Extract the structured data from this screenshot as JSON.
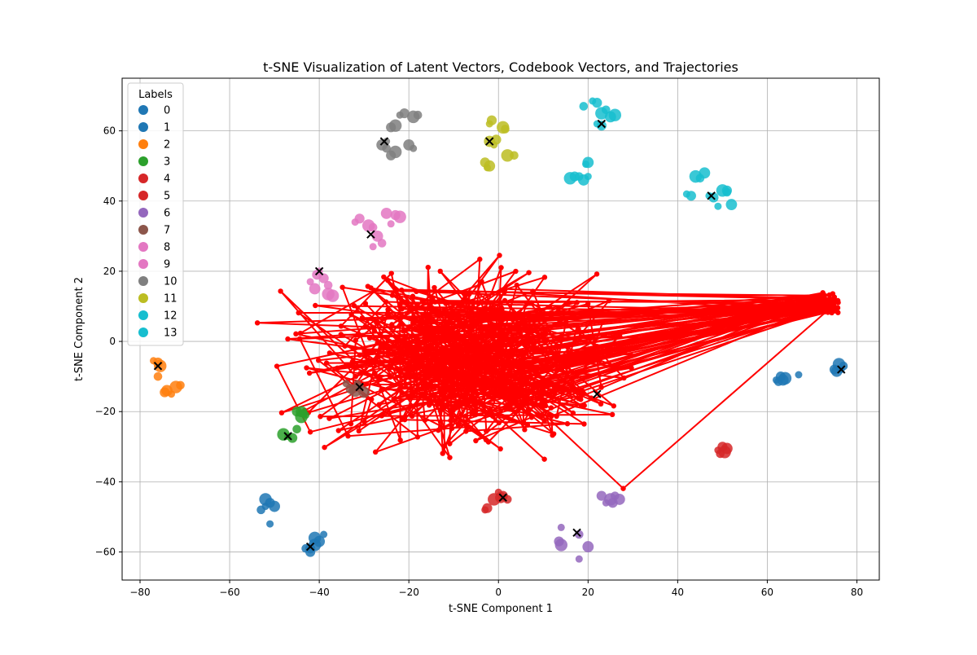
{
  "chart_data": {
    "type": "scatter",
    "title": "t-SNE Visualization of Latent Vectors, Codebook Vectors, and Trajectories",
    "xlabel": "t-SNE Component 1",
    "ylabel": "t-SNE Component 2",
    "xlim": [
      -84,
      85
    ],
    "ylim": [
      -68,
      75
    ],
    "xticks": [
      -80,
      -60,
      -40,
      -20,
      0,
      20,
      40,
      60,
      80
    ],
    "yticks": [
      -60,
      -40,
      -20,
      0,
      20,
      40,
      60
    ],
    "xtick_labels": [
      "−80",
      "−60",
      "−40",
      "−20",
      "0",
      "20",
      "40",
      "60",
      "80"
    ],
    "ytick_labels": [
      "−60",
      "−40",
      "−20",
      "0",
      "20",
      "40",
      "60"
    ],
    "grid": true,
    "legend": {
      "title": "Labels",
      "placement": "upper-left",
      "entries": [
        {
          "label": "0",
          "color": "#1f77b4"
        },
        {
          "label": "1",
          "color": "#1f77b4"
        },
        {
          "label": "2",
          "color": "#ff7f0e"
        },
        {
          "label": "3",
          "color": "#2ca02c"
        },
        {
          "label": "4",
          "color": "#d62728"
        },
        {
          "label": "5",
          "color": "#d62728"
        },
        {
          "label": "6",
          "color": "#9467bd"
        },
        {
          "label": "7",
          "color": "#8c564b"
        },
        {
          "label": "8",
          "color": "#e377c2"
        },
        {
          "label": "9",
          "color": "#e377c2"
        },
        {
          "label": "10",
          "color": "#7f7f7f"
        },
        {
          "label": "11",
          "color": "#bcbd22"
        },
        {
          "label": "12",
          "color": "#17becf"
        },
        {
          "label": "13",
          "color": "#17becf"
        }
      ]
    },
    "clusters": [
      {
        "label": "0",
        "color": "#1f77b4",
        "points": [
          [
            -52,
            -47
          ],
          [
            -51,
            -46
          ],
          [
            -52,
            -45
          ],
          [
            -53,
            -48
          ],
          [
            -50,
            -47
          ],
          [
            -51,
            -52
          ],
          [
            -42,
            -59
          ],
          [
            -41,
            -58
          ],
          [
            -43,
            -59
          ],
          [
            -40,
            -57
          ],
          [
            -39,
            -55
          ],
          [
            -42,
            -60
          ],
          [
            -41,
            -56
          ]
        ]
      },
      {
        "label": "1",
        "color": "#1f77b4",
        "points": [
          [
            62,
            -11
          ],
          [
            63,
            -10
          ],
          [
            64,
            -10.5
          ],
          [
            62.5,
            -11.5
          ],
          [
            63.5,
            -11
          ],
          [
            67,
            -9.5
          ],
          [
            75,
            -8
          ],
          [
            76,
            -6.5
          ],
          [
            77,
            -7
          ],
          [
            75.5,
            -8.5
          ],
          [
            76.5,
            -8
          ]
        ]
      },
      {
        "label": "2",
        "color": "#ff7f0e",
        "points": [
          [
            -77,
            -5.5
          ],
          [
            -76,
            -6
          ],
          [
            -75.5,
            -7
          ],
          [
            -76,
            -10
          ],
          [
            -74,
            -14
          ],
          [
            -73,
            -15
          ],
          [
            -74.5,
            -14.5
          ],
          [
            -72,
            -13
          ],
          [
            -71,
            -12.5
          ]
        ]
      },
      {
        "label": "3",
        "color": "#2ca02c",
        "points": [
          [
            -47,
            -27
          ],
          [
            -46,
            -27.5
          ],
          [
            -48,
            -26.5
          ],
          [
            -45,
            -25
          ],
          [
            -44,
            -20
          ],
          [
            -43,
            -21
          ],
          [
            -45,
            -20
          ],
          [
            -44,
            -21.5
          ],
          [
            -43.5,
            -20.5
          ]
        ]
      },
      {
        "label": "4",
        "color": "#d62728",
        "points": [
          [
            0,
            -43
          ],
          [
            1,
            -44
          ],
          [
            -1,
            -45
          ],
          [
            2,
            -45
          ],
          [
            0.5,
            -44.5
          ],
          [
            -3,
            -48
          ],
          [
            -2.5,
            -47.5
          ]
        ]
      },
      {
        "label": "5",
        "color": "#d62728",
        "points": [
          [
            49,
            -31
          ],
          [
            50,
            -30
          ],
          [
            50.5,
            -31.5
          ],
          [
            49.5,
            -32
          ],
          [
            51,
            -30.5
          ]
        ]
      },
      {
        "label": "6",
        "color": "#9467bd",
        "points": [
          [
            14,
            -53
          ],
          [
            13.5,
            -57
          ],
          [
            14,
            -58
          ],
          [
            18,
            -55
          ],
          [
            20,
            -58.5
          ],
          [
            18,
            -62
          ],
          [
            23,
            -44
          ],
          [
            25,
            -45
          ],
          [
            26,
            -44
          ],
          [
            27,
            -45
          ],
          [
            24,
            -46
          ],
          [
            25.5,
            -46
          ]
        ]
      },
      {
        "label": "7",
        "color": "#8c564b",
        "points": [
          [
            -34,
            -12
          ],
          [
            -33,
            -13.5
          ],
          [
            -32,
            -14
          ],
          [
            -31,
            -13
          ],
          [
            -30,
            -14.5
          ],
          [
            -31.5,
            -12
          ]
        ]
      },
      {
        "label": "8",
        "color": "#e377c2",
        "points": [
          [
            -32,
            34
          ],
          [
            -31,
            35
          ],
          [
            -29,
            33
          ],
          [
            -28,
            32.5
          ],
          [
            -27,
            30
          ],
          [
            -24,
            33.5
          ],
          [
            -23,
            36
          ],
          [
            -22,
            35.5
          ],
          [
            -26,
            28
          ],
          [
            -25,
            36.5
          ],
          [
            -28,
            27
          ]
        ]
      },
      {
        "label": "9",
        "color": "#e377c2",
        "points": [
          [
            -40,
            20
          ],
          [
            -39,
            18
          ],
          [
            -37,
            13
          ],
          [
            -38,
            16
          ],
          [
            -41,
            15
          ],
          [
            -42,
            17
          ],
          [
            -40.5,
            19
          ],
          [
            -38,
            13.5
          ]
        ]
      },
      {
        "label": "10",
        "color": "#7f7f7f",
        "points": [
          [
            -22,
            64.5
          ],
          [
            -21,
            65
          ],
          [
            -19,
            64
          ],
          [
            -18,
            64.5
          ],
          [
            -26,
            56
          ],
          [
            -25,
            57
          ],
          [
            -24,
            53
          ],
          [
            -23,
            54
          ],
          [
            -25,
            55
          ],
          [
            -20,
            56
          ],
          [
            -19,
            55
          ],
          [
            -24,
            61
          ],
          [
            -23,
            61.5
          ]
        ]
      },
      {
        "label": "11",
        "color": "#bcbd22",
        "points": [
          [
            -2,
            62
          ],
          [
            -1.5,
            63
          ],
          [
            1,
            61
          ],
          [
            1.5,
            60.5
          ],
          [
            -2,
            57
          ],
          [
            -1,
            56
          ],
          [
            -0.5,
            57.5
          ],
          [
            2,
            53
          ],
          [
            3.5,
            53
          ],
          [
            -2,
            50
          ],
          [
            -2.5,
            49.5
          ],
          [
            -3,
            51
          ]
        ]
      },
      {
        "label": "12",
        "color": "#17becf",
        "points": [
          [
            21,
            68.5
          ],
          [
            22,
            68
          ],
          [
            23,
            65
          ],
          [
            24,
            66
          ],
          [
            25,
            64
          ],
          [
            22,
            62
          ],
          [
            23,
            61.5
          ],
          [
            26,
            64.5
          ],
          [
            19,
            67
          ],
          [
            20,
            51
          ],
          [
            19.5,
            50.5
          ],
          [
            17,
            47
          ],
          [
            16,
            46.5
          ],
          [
            18,
            47
          ],
          [
            19,
            46
          ],
          [
            20,
            47
          ]
        ]
      },
      {
        "label": "13",
        "color": "#17becf",
        "points": [
          [
            42,
            42
          ],
          [
            43,
            41.5
          ],
          [
            44,
            47
          ],
          [
            45,
            46.5
          ],
          [
            46,
            48
          ],
          [
            47,
            41.5
          ],
          [
            48,
            41
          ],
          [
            50,
            43
          ],
          [
            51,
            42.5
          ],
          [
            52,
            39
          ],
          [
            49,
            38.5
          ],
          [
            51,
            43
          ]
        ]
      }
    ],
    "codebook_vectors": [
      [
        -76,
        -7
      ],
      [
        -47,
        -27
      ],
      [
        -42,
        -58.5
      ],
      [
        -40,
        20
      ],
      [
        -28.5,
        30.5
      ],
      [
        -25.5,
        57
      ],
      [
        -2,
        57
      ],
      [
        23,
        62
      ],
      [
        47.5,
        41.5
      ],
      [
        76.5,
        -8
      ],
      [
        17.5,
        -54.5
      ],
      [
        1,
        -44.5
      ],
      [
        -31,
        -13
      ],
      [
        22,
        -15
      ]
    ],
    "trajectory_color": "#ff0000"
  }
}
